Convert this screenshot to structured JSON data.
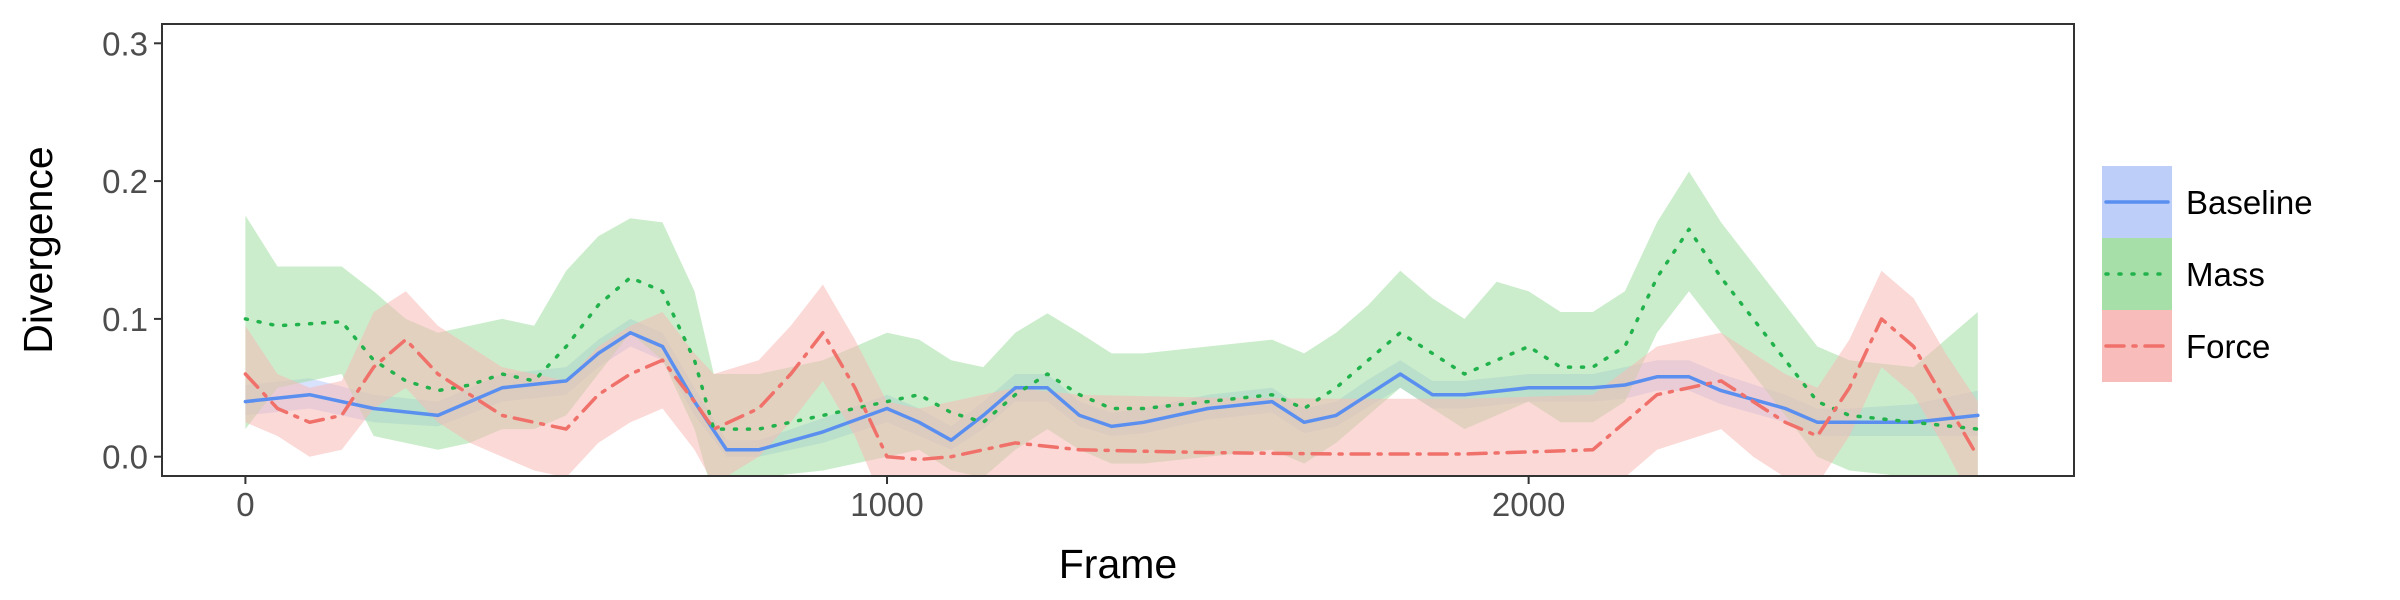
{
  "chart_data": {
    "type": "line",
    "title": "",
    "xlabel": "Frame",
    "ylabel": "Divergence",
    "xlim": [
      -130,
      2850
    ],
    "ylim": [
      -0.014,
      0.314
    ],
    "x_ticks": [
      0,
      1000,
      2000
    ],
    "x_tick_labels": [
      "0",
      "1000",
      "2000"
    ],
    "y_ticks": [
      0.0,
      0.1,
      0.2,
      0.3
    ],
    "y_tick_labels": [
      "0.0",
      "0.1",
      "0.2",
      "0.3"
    ],
    "grid": false,
    "legend_position": "right",
    "series": [
      {
        "name": "Baseline",
        "color": "#5a8ff0",
        "fill": "#b9cbf9",
        "line_style": "solid",
        "x": [
          0,
          100,
          200,
          300,
          400,
          500,
          550,
          600,
          650,
          700,
          750,
          800,
          900,
          1000,
          1050,
          1100,
          1150,
          1200,
          1250,
          1300,
          1350,
          1400,
          1500,
          1600,
          1650,
          1700,
          1750,
          1800,
          1850,
          1900,
          2000,
          2100,
          2150,
          2200,
          2250,
          2300,
          2400,
          2450,
          2500,
          2600,
          2700
        ],
        "y": [
          0.04,
          0.045,
          0.035,
          0.03,
          0.05,
          0.055,
          0.075,
          0.09,
          0.08,
          0.04,
          0.005,
          0.005,
          0.018,
          0.035,
          0.025,
          0.012,
          0.03,
          0.05,
          0.05,
          0.03,
          0.022,
          0.025,
          0.035,
          0.04,
          0.025,
          0.03,
          0.045,
          0.06,
          0.045,
          0.045,
          0.05,
          0.05,
          0.052,
          0.058,
          0.058,
          0.048,
          0.035,
          0.025,
          0.025,
          0.025,
          0.03
        ],
        "lower": [
          0.03,
          0.035,
          0.025,
          0.022,
          0.04,
          0.045,
          0.065,
          0.08,
          0.07,
          0.03,
          0.0,
          0.0,
          0.01,
          0.025,
          0.015,
          0.005,
          0.02,
          0.04,
          0.04,
          0.022,
          0.015,
          0.017,
          0.027,
          0.032,
          0.017,
          0.022,
          0.036,
          0.05,
          0.035,
          0.035,
          0.04,
          0.04,
          0.042,
          0.048,
          0.048,
          0.038,
          0.025,
          0.015,
          0.015,
          0.015,
          0.015
        ],
        "upper": [
          0.052,
          0.057,
          0.045,
          0.04,
          0.06,
          0.065,
          0.085,
          0.1,
          0.09,
          0.05,
          0.012,
          0.012,
          0.028,
          0.045,
          0.035,
          0.022,
          0.04,
          0.06,
          0.06,
          0.04,
          0.032,
          0.035,
          0.045,
          0.05,
          0.035,
          0.04,
          0.056,
          0.07,
          0.055,
          0.055,
          0.06,
          0.06,
          0.065,
          0.07,
          0.07,
          0.06,
          0.045,
          0.035,
          0.035,
          0.038,
          0.048
        ]
      },
      {
        "name": "Mass",
        "color": "#22b24c",
        "fill": "#a1dea3",
        "line_style": "dotted",
        "x": [
          0,
          50,
          150,
          200,
          250,
          300,
          350,
          400,
          450,
          500,
          550,
          600,
          650,
          700,
          730,
          800,
          900,
          1000,
          1050,
          1100,
          1150,
          1200,
          1250,
          1300,
          1350,
          1400,
          1500,
          1600,
          1650,
          1700,
          1750,
          1800,
          1850,
          1900,
          1950,
          2000,
          2050,
          2100,
          2150,
          2200,
          2250,
          2300,
          2350,
          2400,
          2450,
          2500,
          2600,
          2700
        ],
        "y": [
          0.1,
          0.095,
          0.098,
          0.07,
          0.055,
          0.048,
          0.052,
          0.06,
          0.055,
          0.08,
          0.11,
          0.13,
          0.12,
          0.07,
          0.02,
          0.02,
          0.03,
          0.04,
          0.045,
          0.032,
          0.025,
          0.045,
          0.06,
          0.045,
          0.035,
          0.035,
          0.04,
          0.045,
          0.035,
          0.05,
          0.07,
          0.09,
          0.075,
          0.06,
          0.07,
          0.08,
          0.065,
          0.065,
          0.08,
          0.13,
          0.165,
          0.13,
          0.1,
          0.07,
          0.04,
          0.03,
          0.025,
          0.02
        ],
        "lower": [
          0.02,
          0.05,
          0.06,
          0.015,
          0.01,
          0.005,
          0.01,
          0.02,
          0.02,
          0.03,
          0.06,
          0.09,
          0.07,
          0.02,
          -0.03,
          -0.015,
          -0.01,
          0.0,
          0.005,
          -0.01,
          -0.015,
          0.005,
          0.02,
          0.005,
          -0.005,
          -0.005,
          0.0,
          0.005,
          -0.005,
          0.01,
          0.03,
          0.05,
          0.035,
          0.02,
          0.03,
          0.04,
          0.025,
          0.025,
          0.04,
          0.09,
          0.12,
          0.09,
          0.06,
          0.03,
          0.0,
          -0.01,
          -0.015,
          -0.02
        ],
        "upper": [
          0.175,
          0.138,
          0.138,
          0.12,
          0.1,
          0.09,
          0.095,
          0.1,
          0.095,
          0.135,
          0.16,
          0.173,
          0.17,
          0.12,
          0.06,
          0.06,
          0.07,
          0.09,
          0.085,
          0.07,
          0.065,
          0.09,
          0.104,
          0.09,
          0.075,
          0.075,
          0.08,
          0.085,
          0.075,
          0.09,
          0.11,
          0.135,
          0.115,
          0.1,
          0.127,
          0.12,
          0.105,
          0.105,
          0.12,
          0.17,
          0.207,
          0.17,
          0.14,
          0.11,
          0.08,
          0.07,
          0.065,
          0.105
        ]
      },
      {
        "name": "Force",
        "color": "#f0706a",
        "fill": "#f8b9b6",
        "line_style": "dashdot",
        "x": [
          0,
          50,
          100,
          150,
          200,
          250,
          300,
          350,
          400,
          450,
          500,
          550,
          600,
          650,
          700,
          730,
          800,
          850,
          900,
          950,
          1000,
          1050,
          1100,
          1200,
          1300,
          1500,
          1700,
          1900,
          2100,
          2200,
          2300,
          2350,
          2400,
          2450,
          2500,
          2550,
          2600,
          2650,
          2700
        ],
        "y": [
          0.06,
          0.035,
          0.025,
          0.03,
          0.065,
          0.085,
          0.06,
          0.045,
          0.03,
          0.025,
          0.02,
          0.045,
          0.06,
          0.07,
          0.04,
          0.02,
          0.035,
          0.06,
          0.09,
          0.05,
          0.0,
          -0.002,
          0.0,
          0.01,
          0.005,
          0.003,
          0.002,
          0.002,
          0.005,
          0.045,
          0.055,
          0.04,
          0.025,
          0.015,
          0.05,
          0.1,
          0.08,
          0.04,
          0.0
        ],
        "lower": [
          0.025,
          0.015,
          0.0,
          0.005,
          0.035,
          0.05,
          0.025,
          0.01,
          0.0,
          -0.01,
          -0.015,
          0.01,
          0.025,
          0.035,
          0.005,
          -0.02,
          0.0,
          0.025,
          0.055,
          0.015,
          -0.04,
          -0.045,
          -0.04,
          -0.03,
          -0.035,
          -0.037,
          -0.038,
          -0.038,
          -0.035,
          0.005,
          0.02,
          0.0,
          -0.015,
          -0.02,
          0.015,
          0.065,
          0.045,
          0.005,
          -0.04
        ],
        "upper": [
          0.095,
          0.06,
          0.05,
          0.055,
          0.105,
          0.12,
          0.095,
          0.08,
          0.065,
          0.06,
          0.055,
          0.08,
          0.095,
          0.105,
          0.075,
          0.06,
          0.07,
          0.095,
          0.125,
          0.085,
          0.04,
          0.035,
          0.04,
          0.05,
          0.045,
          0.043,
          0.042,
          0.042,
          0.045,
          0.08,
          0.09,
          0.075,
          0.06,
          0.05,
          0.085,
          0.135,
          0.115,
          0.075,
          0.04
        ]
      }
    ]
  }
}
